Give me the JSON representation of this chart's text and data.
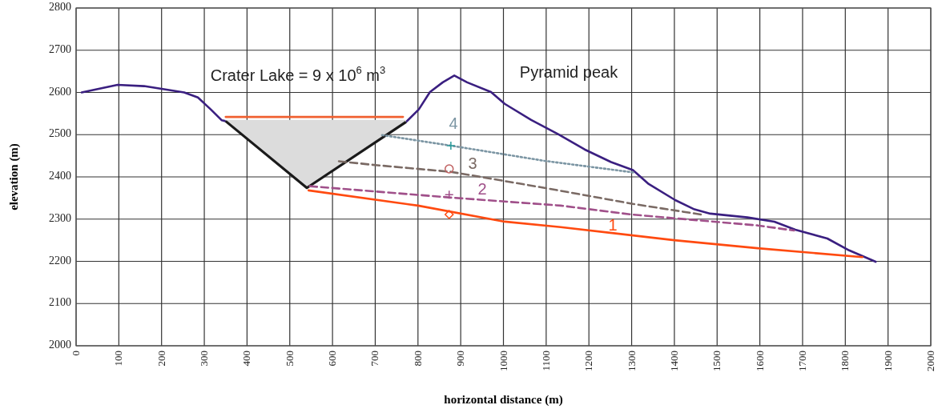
{
  "chart_data": {
    "type": "line",
    "xlabel": "horizontal distance (m)",
    "ylabel": "elevation (m)",
    "xlim": [
      0,
      2000
    ],
    "ylim": [
      2000,
      2800
    ],
    "xticks": [
      0,
      100,
      200,
      300,
      400,
      500,
      600,
      700,
      800,
      900,
      1000,
      1100,
      1200,
      1300,
      1400,
      1500,
      1600,
      1700,
      1800,
      1900,
      2000
    ],
    "yticks": [
      2000,
      2100,
      2200,
      2300,
      2400,
      2500,
      2600,
      2700,
      2800
    ],
    "grid": true,
    "series": [
      {
        "color": "#3a1f80",
        "line_style": "solid",
        "x": [
          13,
          97,
          159,
          253,
          285,
          315,
          341,
          350
        ],
        "values": [
          2600,
          2618,
          2615,
          2600,
          2588,
          2560,
          2534,
          2532
        ]
      },
      {
        "color": "#3a1f80",
        "line_style": "solid",
        "x": [
          772,
          802,
          828,
          858,
          885,
          915,
          971,
          1003,
          1065,
          1128,
          1190,
          1252,
          1303,
          1340,
          1402,
          1447,
          1484,
          1571,
          1634,
          1683,
          1758,
          1809,
          1871
        ],
        "values": [
          2530,
          2560,
          2601,
          2624,
          2640,
          2624,
          2601,
          2573,
          2535,
          2501,
          2465,
          2435,
          2416,
          2383,
          2345,
          2323,
          2313,
          2304,
          2294,
          2275,
          2254,
          2226,
          2199
        ]
      },
      {
        "color": "#1a1a1a",
        "x": [
          350,
          540,
          772
        ],
        "values": [
          2532,
          2374,
          2530
        ],
        "lower": [
          2532,
          2374,
          2530
        ],
        "upper": [
          2535,
          2535,
          2535
        ]
      },
      {
        "color": "#f06030",
        "line_style": "solid",
        "x": [
          350,
          765
        ],
        "values": [
          2542,
          2542
        ]
      },
      {
        "name": "1",
        "color": "#ff4a10",
        "line_style": "solid",
        "x": [
          544,
          800,
          1003,
          1134,
          1400,
          1595,
          1840
        ],
        "values": [
          2368,
          2332,
          2294,
          2281,
          2250,
          2231,
          2210
        ]
      },
      {
        "name": "2",
        "color": "#a0508a",
        "line_style": "dashed",
        "x": [
          547,
          877,
          1134,
          1299,
          1400,
          1595,
          1680
        ],
        "values": [
          2378,
          2351,
          2332,
          2311,
          2302,
          2285,
          2273
        ]
      },
      {
        "name": "3",
        "color": "#7a6a64",
        "line_style": "dashed",
        "x": [
          615,
          700,
          877,
          1096,
          1303,
          1462
        ],
        "values": [
          2437,
          2428,
          2412,
          2374,
          2336,
          2311
        ]
      },
      {
        "name": "4",
        "color": "#7b95a3",
        "line_style": "dotted",
        "x": [
          716,
          877,
          1096,
          1308
        ],
        "values": [
          2499,
          2474,
          2438,
          2410
        ]
      },
      {
        "type": "scatter",
        "color": "#2a9a9a",
        "marker": "cross",
        "x": [
          877
        ],
        "values": [
          2474
        ]
      },
      {
        "type": "scatter",
        "color": "#c06060",
        "marker": "circle",
        "x": [
          873
        ],
        "values": [
          2419
        ]
      },
      {
        "type": "scatter",
        "color": "#a0508a",
        "marker": "cross",
        "x": [
          873
        ],
        "values": [
          2358
        ]
      },
      {
        "type": "scatter",
        "color": "#ff4a10",
        "marker": "diamond",
        "x": [
          873
        ],
        "values": [
          2311
        ]
      }
    ],
    "annotations": [
      "Crater Lake = 9 x 10$^{6}$ m$^{3}$",
      "Pyramid peak"
    ]
  }
}
